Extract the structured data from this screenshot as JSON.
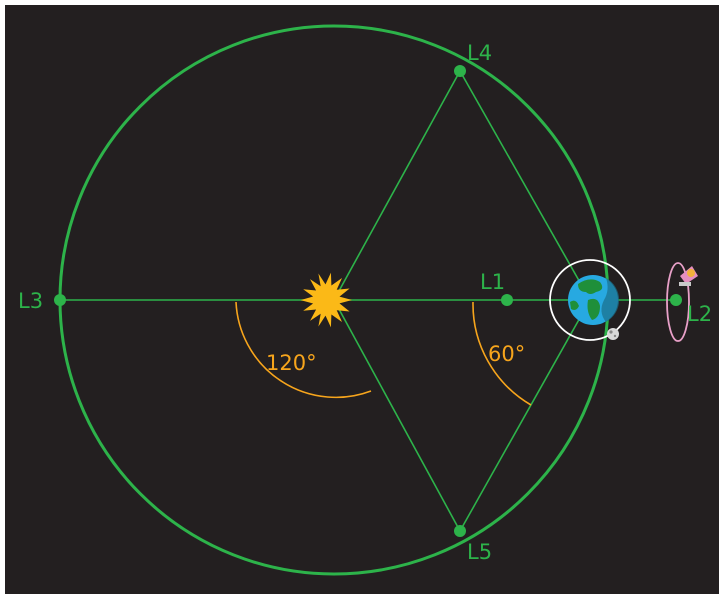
{
  "diagram": {
    "lagrange_points": [
      {
        "id": "L1",
        "label": "L1"
      },
      {
        "id": "L2",
        "label": "L2"
      },
      {
        "id": "L3",
        "label": "L3"
      },
      {
        "id": "L4",
        "label": "L4"
      },
      {
        "id": "L5",
        "label": "L5"
      }
    ],
    "angles": {
      "large": "120°",
      "small": "60°"
    },
    "colors": {
      "background": "#231f20",
      "orbit": "#2db34a",
      "angle_arc": "#f7a51c",
      "sun": "#fbb917",
      "earth_ocean": "#27a9e1",
      "earth_land": "#1f8f3a",
      "earth_ring": "#ffffff",
      "l2_orbit": "#e8a0c8"
    },
    "icons": [
      "sun-icon",
      "earth-icon",
      "moon-icon",
      "telescope-icon"
    ]
  }
}
